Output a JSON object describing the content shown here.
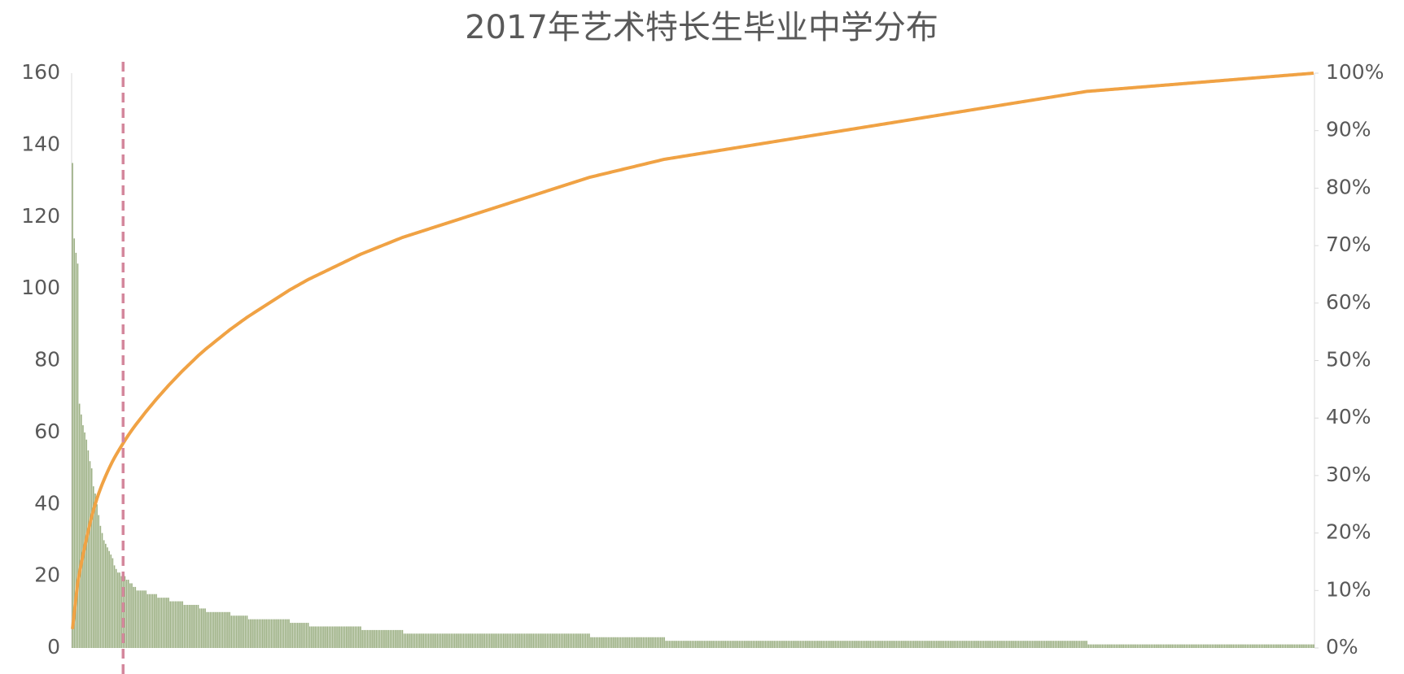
{
  "chart_data": {
    "type": "pareto",
    "title": "2017年艺术特长生毕业中学分布",
    "values": [
      135,
      114,
      110,
      107,
      68,
      65,
      62,
      60,
      58,
      55,
      52,
      50,
      45,
      43,
      40,
      37,
      34,
      32,
      30,
      29,
      28,
      27,
      26,
      25,
      23,
      22,
      21,
      21,
      20,
      20,
      20,
      19,
      19,
      18,
      18,
      17,
      17,
      16,
      16,
      16,
      16,
      16,
      16,
      15,
      15,
      15,
      15,
      15,
      15,
      14,
      14,
      14,
      14,
      14,
      14,
      14,
      13,
      13,
      13,
      13,
      13,
      13,
      13,
      13,
      12,
      12,
      12,
      12,
      12,
      12,
      12,
      12,
      12,
      11,
      11,
      11,
      11,
      10,
      10,
      10,
      10,
      10,
      10,
      10,
      10,
      10,
      10,
      10,
      10,
      10,
      10,
      9,
      9,
      9,
      9,
      9,
      9,
      9,
      9,
      9,
      9,
      8,
      8,
      8,
      8,
      8,
      8,
      8,
      8,
      8,
      8,
      8,
      8,
      8,
      8,
      8,
      8,
      8,
      8,
      8,
      8,
      8,
      8,
      8,
      8,
      7,
      7,
      7,
      7,
      7,
      7,
      7,
      7,
      7,
      7,
      7,
      6,
      6,
      6,
      6,
      6,
      6,
      6,
      6,
      6,
      6,
      6,
      6,
      6,
      6,
      6,
      6,
      6,
      6,
      6,
      6,
      6,
      6,
      6,
      6,
      6,
      6,
      6,
      6,
      6,
      6,
      5,
      5,
      5,
      5,
      5,
      5,
      5,
      5,
      5,
      5,
      5,
      5,
      5,
      5,
      5,
      5,
      5,
      5,
      5,
      5,
      5,
      5,
      5,
      5,
      4,
      4,
      4,
      4,
      4,
      4,
      4,
      4,
      4,
      4,
      4,
      4,
      4,
      4,
      4,
      4,
      4,
      4,
      4,
      4,
      4,
      4,
      4,
      4,
      4,
      4,
      4,
      4,
      4,
      4,
      4,
      4,
      4,
      4,
      4,
      4,
      4,
      4,
      4,
      4,
      4,
      4,
      4,
      4,
      4,
      4,
      4,
      4,
      4,
      4,
      4,
      4,
      4,
      4,
      4,
      4,
      4,
      4,
      4,
      4,
      4,
      4,
      4,
      4,
      4,
      4,
      4,
      4,
      4,
      4,
      4,
      4,
      4,
      4,
      4,
      4,
      4,
      4,
      4,
      4,
      4,
      4,
      4,
      4,
      4,
      4,
      4,
      4,
      4,
      4,
      4,
      4,
      4,
      4,
      4,
      4,
      4,
      4,
      4,
      4,
      4,
      4,
      4,
      4,
      4,
      4,
      4,
      3,
      3,
      3,
      3,
      3,
      3,
      3,
      3,
      3,
      3,
      3,
      3,
      3,
      3,
      3,
      3,
      3,
      3,
      3,
      3,
      3,
      3,
      3,
      3,
      3,
      3,
      3,
      3,
      3,
      3,
      3,
      3,
      3,
      3,
      3,
      3,
      3,
      3,
      3,
      3,
      3,
      3,
      3,
      2,
      2,
      2,
      2,
      2,
      2,
      2,
      2,
      2,
      2,
      2,
      2,
      2,
      2,
      2,
      2,
      2,
      2,
      2,
      2,
      2,
      2,
      2,
      2,
      2,
      2,
      2,
      2,
      2,
      2,
      2,
      2,
      2,
      2,
      2,
      2,
      2,
      2,
      2,
      2,
      2,
      2,
      2,
      2,
      2,
      2,
      2,
      2,
      2,
      2,
      2,
      2,
      2,
      2,
      2,
      2,
      2,
      2,
      2,
      2,
      2,
      2,
      2,
      2,
      2,
      2,
      2,
      2,
      2,
      2,
      2,
      2,
      2,
      2,
      2,
      2,
      2,
      2,
      2,
      2,
      2,
      2,
      2,
      2,
      2,
      2,
      2,
      2,
      2,
      2,
      2,
      2,
      2,
      2,
      2,
      2,
      2,
      2,
      2,
      2,
      2,
      2,
      2,
      2,
      2,
      2,
      2,
      2,
      2,
      2,
      2,
      2,
      2,
      2,
      2,
      2,
      2,
      2,
      2,
      2,
      2,
      2,
      2,
      2,
      2,
      2,
      2,
      2,
      2,
      2,
      2,
      2,
      2,
      2,
      2,
      2,
      2,
      2,
      2,
      2,
      2,
      2,
      2,
      2,
      2,
      2,
      2,
      2,
      2,
      2,
      2,
      2,
      2,
      2,
      2,
      2,
      2,
      2,
      2,
      2,
      2,
      2,
      2,
      2,
      2,
      2,
      2,
      2,
      2,
      2,
      2,
      2,
      2,
      2,
      2,
      2,
      2,
      2,
      2,
      2,
      2,
      2,
      2,
      2,
      2,
      2,
      2,
      2,
      2,
      2,
      2,
      2,
      2,
      2,
      2,
      2,
      2,
      2,
      2,
      2,
      2,
      2,
      2,
      2,
      2,
      2,
      2,
      2,
      2,
      2,
      2,
      2,
      2,
      2,
      2,
      2,
      2,
      2,
      2,
      2,
      2,
      2,
      2,
      2,
      2,
      2,
      2,
      2,
      2,
      2,
      2,
      2,
      2,
      2,
      2,
      2,
      2,
      2,
      2,
      2,
      2,
      2,
      1,
      1,
      1,
      1,
      1,
      1,
      1,
      1,
      1,
      1,
      1,
      1,
      1,
      1,
      1,
      1,
      1,
      1,
      1,
      1,
      1,
      1,
      1,
      1,
      1,
      1,
      1,
      1,
      1,
      1,
      1,
      1,
      1,
      1,
      1,
      1,
      1,
      1,
      1,
      1,
      1,
      1,
      1,
      1,
      1,
      1,
      1,
      1,
      1,
      1,
      1,
      1,
      1,
      1,
      1,
      1,
      1,
      1,
      1,
      1,
      1,
      1,
      1,
      1,
      1,
      1,
      1,
      1,
      1,
      1,
      1,
      1,
      1,
      1,
      1,
      1,
      1,
      1,
      1,
      1,
      1,
      1,
      1,
      1,
      1,
      1,
      1,
      1,
      1,
      1,
      1,
      1,
      1,
      1,
      1,
      1,
      1,
      1,
      1,
      1,
      1,
      1,
      1,
      1,
      1,
      1,
      1,
      1,
      1,
      1,
      1,
      1,
      1,
      1,
      1,
      1,
      1,
      1,
      1,
      1,
      1,
      1,
      1,
      1,
      1,
      1,
      1,
      1,
      1,
      1
    ],
    "color": "#9cb084",
    "line_color": "#f0a244",
    "vline_x": 29.5,
    "vline_color": "#d4879c",
    "ylim": [
      0,
      160
    ],
    "yticks": [
      0,
      20,
      40,
      60,
      80,
      100,
      120,
      140,
      160
    ],
    "y2lim": [
      0,
      100
    ],
    "y2ticks": [
      {
        "value": 0,
        "label": "0%"
      },
      {
        "value": 10,
        "label": "10%"
      },
      {
        "value": 20,
        "label": "20%"
      },
      {
        "value": 30,
        "label": "30%"
      },
      {
        "value": 40,
        "label": "40%"
      },
      {
        "value": 50,
        "label": "50%"
      },
      {
        "value": 60,
        "label": "60%"
      },
      {
        "value": 70,
        "label": "70%"
      },
      {
        "value": 80,
        "label": "80%"
      },
      {
        "value": 90,
        "label": "90%"
      },
      {
        "value": 100,
        "label": "100%"
      }
    ]
  }
}
